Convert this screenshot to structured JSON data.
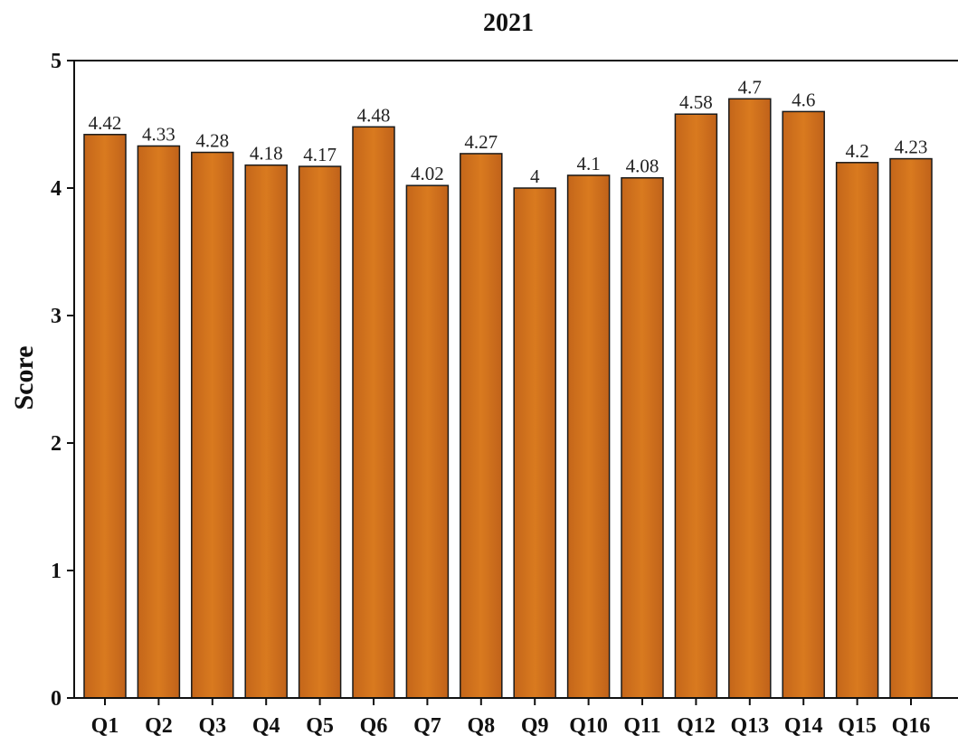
{
  "chart_data": {
    "type": "bar",
    "title": "2021",
    "xlabel": "",
    "ylabel": "Score",
    "ylim": [
      0,
      5
    ],
    "yticks": [
      "0",
      "1",
      "2",
      "3",
      "4",
      "5"
    ],
    "categories": [
      "Q1",
      "Q2",
      "Q3",
      "Q4",
      "Q5",
      "Q6",
      "Q7",
      "Q8",
      "Q9",
      "Q10",
      "Q11",
      "Q12",
      "Q13",
      "Q14",
      "Q15",
      "Q16"
    ],
    "values": [
      4.42,
      4.33,
      4.28,
      4.18,
      4.17,
      4.48,
      4.02,
      4.27,
      4,
      4.1,
      4.08,
      4.58,
      4.7,
      4.6,
      4.2,
      4.23
    ],
    "value_labels": [
      "4.42",
      "4.33",
      "4.28",
      "4.18",
      "4.17",
      "4.48",
      "4.02",
      "4.27",
      "4",
      "4.1",
      "4.08",
      "4.58",
      "4.7",
      "4.6",
      "4.2",
      "4.23"
    ],
    "bar_color": "#d2731c",
    "grid": false,
    "legend": "none"
  }
}
